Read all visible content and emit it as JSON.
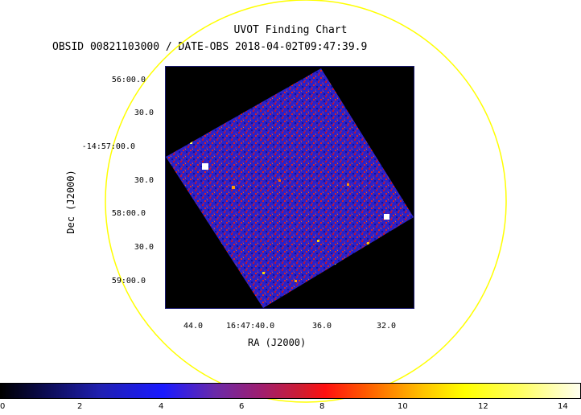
{
  "header": {
    "title": "UVOT Finding Chart",
    "subtitle": "OBSID 00821103000 / DATE-OBS 2018-04-02T09:47:39.9"
  },
  "axes": {
    "xlabel": "RA (J2000)",
    "ylabel": "Dec (J2000)",
    "ra_ticks": [
      "44.0",
      "16:47:40.0",
      "36.0",
      "32.0"
    ],
    "dec_ticks": [
      "56:00.0",
      "30.0",
      "-14:57:00.0",
      "30.0",
      "58:00.0",
      "30.0",
      "59:00.0"
    ]
  },
  "colorbar": {
    "ticks": [
      "0",
      "2",
      "4",
      "6",
      "8",
      "10",
      "12",
      "14"
    ],
    "min": 0,
    "max": 14.2
  },
  "colors": {
    "circle": "#ffff00",
    "frame_border": "#1a1a70",
    "background": "#000000"
  }
}
